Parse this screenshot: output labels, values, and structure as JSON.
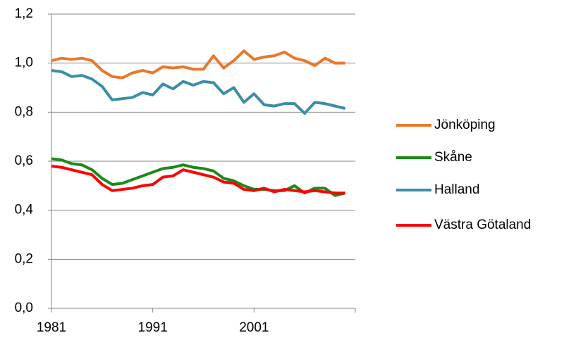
{
  "chart_data": {
    "type": "line",
    "x": [
      1981,
      1982,
      1983,
      1984,
      1985,
      1986,
      1987,
      1988,
      1989,
      1990,
      1991,
      1992,
      1993,
      1994,
      1995,
      1996,
      1997,
      1998,
      1999,
      2000,
      2001,
      2002,
      2003,
      2004,
      2005,
      2006,
      2007,
      2008,
      2009,
      2010
    ],
    "series": [
      {
        "name": "Jönköping",
        "color": "#e8792b",
        "values": [
          1.01,
          1.02,
          1.015,
          1.02,
          1.01,
          0.97,
          0.945,
          0.94,
          0.96,
          0.97,
          0.96,
          0.985,
          0.98,
          0.985,
          0.975,
          0.975,
          1.03,
          0.98,
          1.01,
          1.05,
          1.015,
          1.025,
          1.03,
          1.045,
          1.02,
          1.01,
          0.99,
          1.02,
          1.0,
          1.0
        ]
      },
      {
        "name": "Skåne",
        "color": "#1a8a1a",
        "values": [
          0.61,
          0.605,
          0.59,
          0.585,
          0.565,
          0.53,
          0.505,
          0.51,
          0.525,
          0.54,
          0.555,
          0.57,
          0.575,
          0.585,
          0.575,
          0.57,
          0.56,
          0.53,
          0.52,
          0.5,
          0.485,
          0.485,
          0.48,
          0.48,
          0.5,
          0.47,
          0.49,
          0.49,
          0.46,
          0.47
        ]
      },
      {
        "name": "Halland",
        "color": "#3a8ea5",
        "values": [
          0.97,
          0.965,
          0.945,
          0.95,
          0.935,
          0.905,
          0.85,
          0.855,
          0.86,
          0.88,
          0.87,
          0.915,
          0.895,
          0.925,
          0.91,
          0.925,
          0.92,
          0.875,
          0.9,
          0.84,
          0.875,
          0.83,
          0.825,
          0.835,
          0.835,
          0.795,
          0.84,
          0.835,
          0.825,
          0.815
        ]
      },
      {
        "name": "Västra Götaland",
        "color": "#ff0000",
        "values": [
          0.58,
          0.575,
          0.565,
          0.555,
          0.545,
          0.505,
          0.48,
          0.485,
          0.49,
          0.5,
          0.505,
          0.535,
          0.54,
          0.565,
          0.555,
          0.545,
          0.535,
          0.515,
          0.51,
          0.485,
          0.48,
          0.49,
          0.475,
          0.485,
          0.48,
          0.475,
          0.48,
          0.475,
          0.47,
          0.47
        ]
      }
    ],
    "xlim": [
      1981,
      2011
    ],
    "xticks": [
      1981,
      1991,
      2001
    ],
    "ylim": [
      0,
      1.2
    ],
    "yticks": [
      {
        "value": 0,
        "label": "0,0"
      },
      {
        "value": 0.2,
        "label": "0,2"
      },
      {
        "value": 0.4,
        "label": "0,4"
      },
      {
        "value": 0.6,
        "label": "0,6"
      },
      {
        "value": 0.8,
        "label": "0,8"
      },
      {
        "value": 1.0,
        "label": "1,0"
      },
      {
        "value": 1.2,
        "label": "1,2"
      }
    ],
    "grid": true,
    "legend": "right"
  }
}
